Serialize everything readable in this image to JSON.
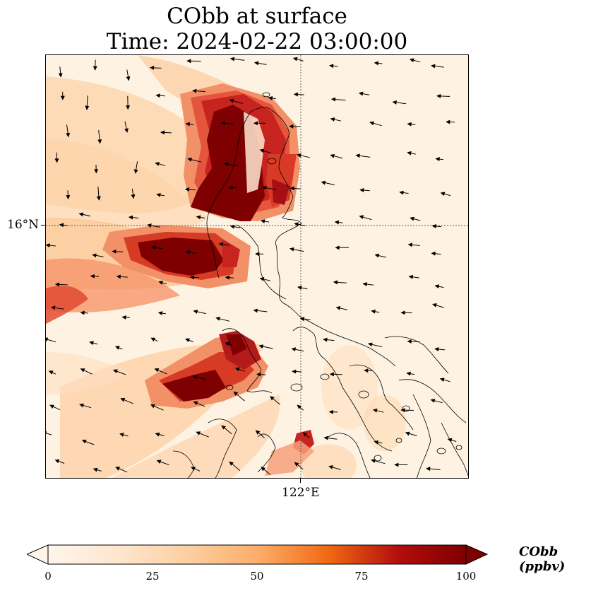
{
  "title": {
    "line1": "CObb at surface",
    "line2": "Time: 2024-02-22 03:00:00"
  },
  "map": {
    "lat_tick_label": "16°N",
    "lon_tick_label": "122°E",
    "colormap": [
      "#fff5eb",
      "#fdd8b0",
      "#fdae6b",
      "#f16913",
      "#d94801",
      "#a50f15",
      "#7f0000"
    ],
    "hotspots": [
      {
        "name": "north-luzon-plume",
        "peak": 100
      },
      {
        "name": "central-luzon-plume",
        "peak": 100
      },
      {
        "name": "mindoro-plume",
        "peak": 95
      },
      {
        "name": "southern-spot",
        "peak": 80
      }
    ]
  },
  "colorbar": {
    "label": "CObb (ppbv)",
    "min": 0,
    "max": 100,
    "ticks": [
      "0",
      "25",
      "50",
      "75",
      "100"
    ],
    "extend": "both"
  }
}
